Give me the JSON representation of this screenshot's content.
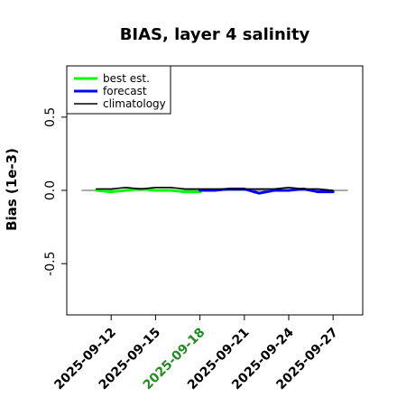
{
  "chart_data": {
    "type": "line",
    "title": "BIAS, layer 4 salinity",
    "ylabel": "Bias (1e-3)",
    "xlabel": "",
    "ylim": [
      -0.85,
      0.85
    ],
    "yticks": [
      -0.5,
      0.0,
      0.5
    ],
    "ytick_labels": [
      "-0.5",
      "0.0",
      "0.5"
    ],
    "xlim": [
      "2025-09-09",
      "2025-09-29"
    ],
    "xticks": [
      "2025-09-12",
      "2025-09-15",
      "2025-09-18",
      "2025-09-21",
      "2025-09-24",
      "2025-09-27"
    ],
    "highlighted_xtick": "2025-09-18",
    "highlight_color": "#228B22",
    "zero_line": true,
    "grid": false,
    "legend_position": "top-left",
    "series": [
      {
        "name": "best est.",
        "color": "#00ff00",
        "x": [
          "2025-09-11",
          "2025-09-12",
          "2025-09-13",
          "2025-09-14",
          "2025-09-15",
          "2025-09-16",
          "2025-09-17",
          "2025-09-18"
        ],
        "y": [
          0.0,
          -0.01,
          0.0,
          0.01,
          0.0,
          0.0,
          -0.01,
          -0.01
        ]
      },
      {
        "name": "forecast",
        "color": "#0000ff",
        "x": [
          "2025-09-18",
          "2025-09-19",
          "2025-09-20",
          "2025-09-21",
          "2025-09-22",
          "2025-09-23",
          "2025-09-24",
          "2025-09-25",
          "2025-09-26",
          "2025-09-27"
        ],
        "y": [
          0.0,
          0.0,
          0.01,
          0.01,
          -0.02,
          0.0,
          0.0,
          0.01,
          -0.01,
          -0.01
        ]
      },
      {
        "name": "climatology",
        "color": "#000000",
        "x": [
          "2025-09-11",
          "2025-09-12",
          "2025-09-13",
          "2025-09-14",
          "2025-09-15",
          "2025-09-16",
          "2025-09-17",
          "2025-09-18",
          "2025-09-19",
          "2025-09-20",
          "2025-09-21",
          "2025-09-22",
          "2025-09-23",
          "2025-09-24",
          "2025-09-25",
          "2025-09-26",
          "2025-09-27"
        ],
        "y": [
          0.01,
          0.01,
          0.02,
          0.01,
          0.02,
          0.02,
          0.01,
          0.01,
          0.01,
          0.01,
          0.01,
          0.01,
          0.01,
          0.02,
          0.01,
          0.01,
          0.0
        ]
      }
    ]
  }
}
